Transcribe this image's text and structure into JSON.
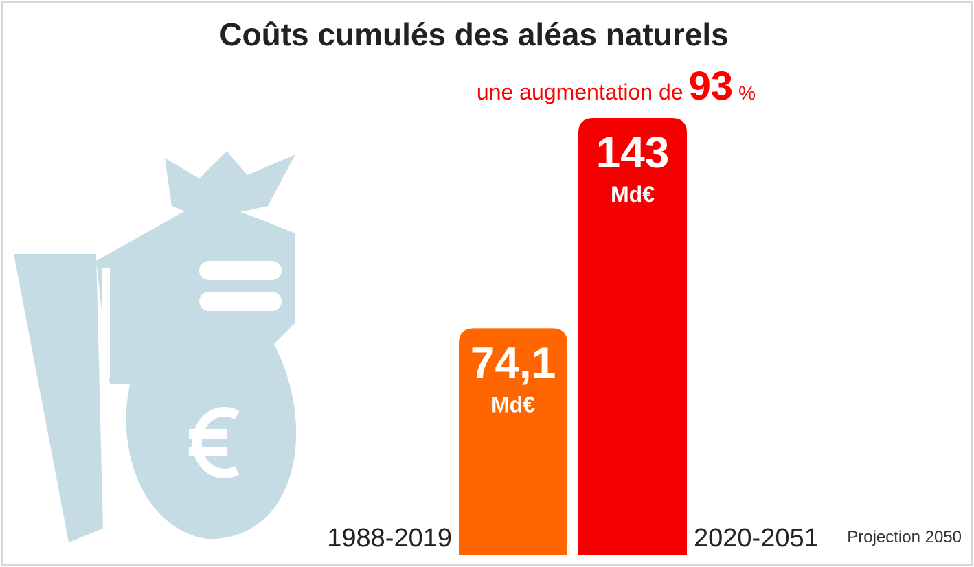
{
  "chart_data": {
    "type": "bar",
    "title": "Coûts cumulés des aléas naturels",
    "annotation": {
      "prefix": "une augmentation de",
      "number": "93",
      "suffix": "%"
    },
    "categories": [
      "1988-2019",
      "2020-2051"
    ],
    "values": [
      74.1,
      143
    ],
    "value_labels": [
      "74,1",
      "143"
    ],
    "unit": "Md€",
    "colors": [
      "#ff6600",
      "#f50000"
    ],
    "note": "Projection 2050"
  }
}
